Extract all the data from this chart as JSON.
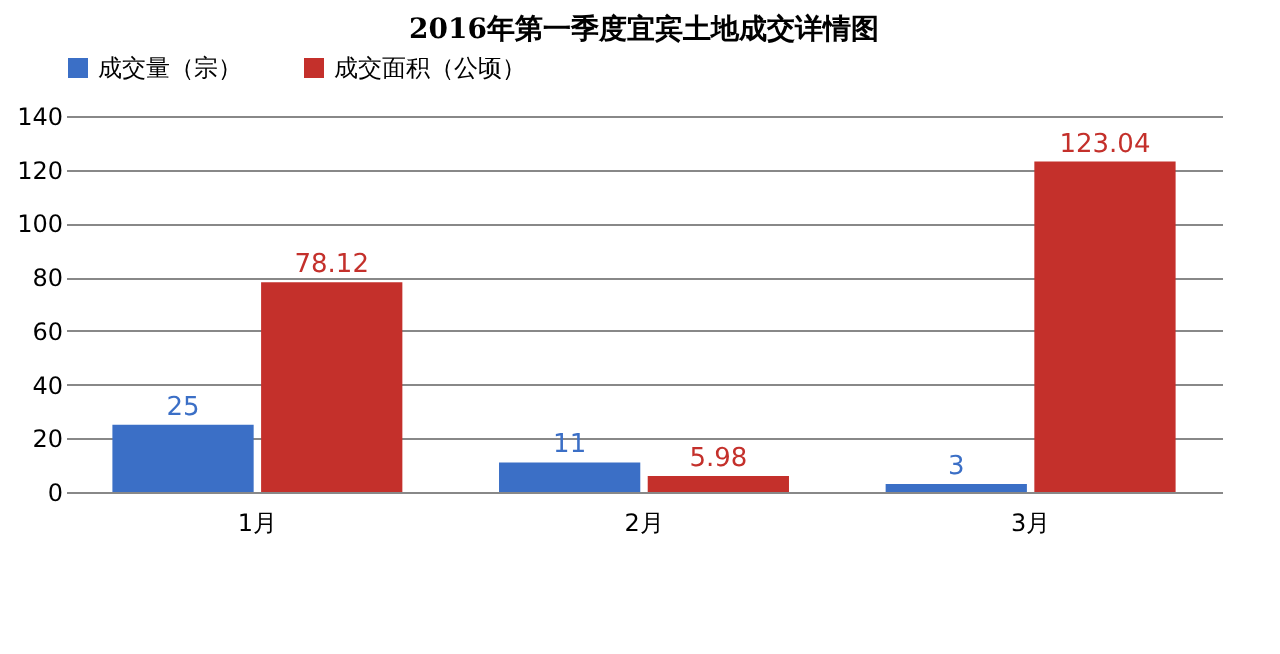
{
  "chart_data": {
    "type": "bar",
    "title": "2016年第一季度宜宾土地成交详情图",
    "categories": [
      "1月",
      "2月",
      "3月"
    ],
    "series": [
      {
        "name": "成交量（宗）",
        "color": "#3b6fc6",
        "values": [
          25,
          11,
          3
        ]
      },
      {
        "name": "成交面积（公顷）",
        "color": "#c4302b",
        "values": [
          78.12,
          5.98,
          123.04
        ]
      }
    ],
    "ylim": [
      0,
      140
    ],
    "yticks": [
      0,
      20,
      40,
      60,
      80,
      100,
      120,
      140
    ],
    "grid": "y",
    "legend": "top",
    "data_labels": true
  }
}
